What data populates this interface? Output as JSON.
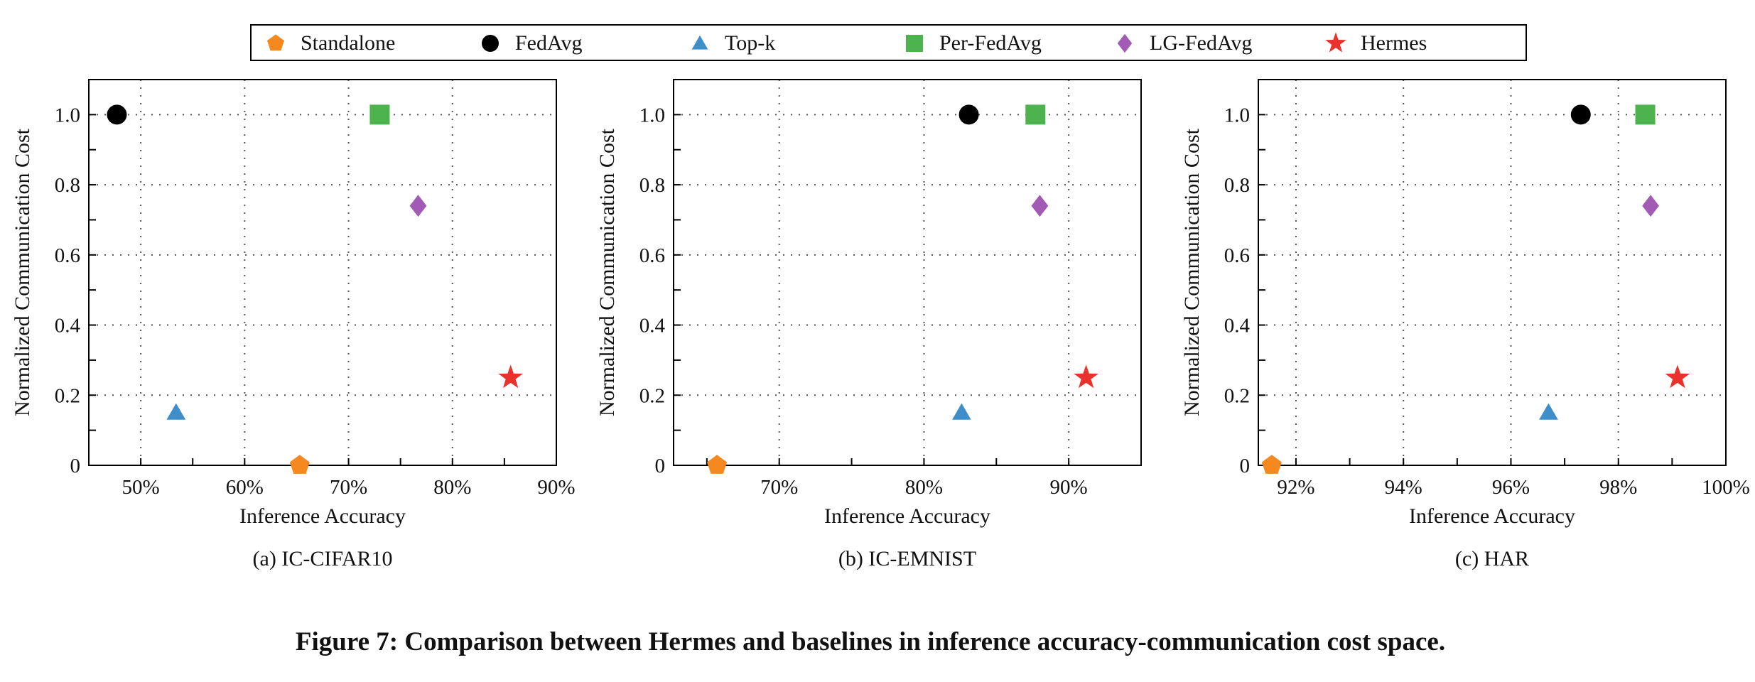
{
  "figure_caption": "Figure 7: Comparison between Hermes and baselines in inference accuracy-communication cost space.",
  "legend": {
    "items": [
      {
        "label": "Standalone",
        "marker": "pentagon",
        "color": "#f5891f"
      },
      {
        "label": "FedAvg",
        "marker": "circle",
        "color": "#000000"
      },
      {
        "label": "Top-k",
        "marker": "triangle",
        "color": "#3d8ec9"
      },
      {
        "label": "Per-FedAvg",
        "marker": "square",
        "color": "#4cb34f"
      },
      {
        "label": "LG-FedAvg",
        "marker": "diamond",
        "color": "#a25bb5"
      },
      {
        "label": "Hermes",
        "marker": "star",
        "color": "#e8322b"
      }
    ]
  },
  "chart_data": [
    {
      "type": "scatter",
      "subcaption": "(a) IC-CIFAR10",
      "xlabel": "Inference Accuracy",
      "ylabel": "Normalized Communication Cost",
      "xlim": [
        45,
        90
      ],
      "ylim": [
        0,
        1.1
      ],
      "xticks": [
        50,
        60,
        70,
        80,
        90
      ],
      "xtick_labels": [
        "50%",
        "60%",
        "70%",
        "80%",
        "90%"
      ],
      "yticks": [
        0,
        0.2,
        0.4,
        0.6,
        0.8,
        1.0
      ],
      "ytick_labels": [
        "0",
        "0.2",
        "0.4",
        "0.6",
        "0.8",
        "1.0"
      ],
      "grid": true,
      "series": [
        {
          "name": "Standalone",
          "x": 65.3,
          "y": 0.0
        },
        {
          "name": "FedAvg",
          "x": 47.7,
          "y": 1.0
        },
        {
          "name": "Top-k",
          "x": 53.4,
          "y": 0.15
        },
        {
          "name": "Per-FedAvg",
          "x": 73.0,
          "y": 1.0
        },
        {
          "name": "LG-FedAvg",
          "x": 76.7,
          "y": 0.74
        },
        {
          "name": "Hermes",
          "x": 85.6,
          "y": 0.25
        }
      ]
    },
    {
      "type": "scatter",
      "subcaption": "(b) IC-EMNIST",
      "xlabel": "Inference Accuracy",
      "ylabel": "Normalized Communication Cost",
      "xlim": [
        62.7,
        95
      ],
      "ylim": [
        0,
        1.1
      ],
      "xticks": [
        70,
        80,
        90
      ],
      "xtick_labels": [
        "70%",
        "80%",
        "90%"
      ],
      "yticks": [
        0,
        0.2,
        0.4,
        0.6,
        0.8,
        1.0
      ],
      "ytick_labels": [
        "0",
        "0.2",
        "0.4",
        "0.6",
        "0.8",
        "1.0"
      ],
      "grid": true,
      "series": [
        {
          "name": "Standalone",
          "x": 65.7,
          "y": 0.0
        },
        {
          "name": "FedAvg",
          "x": 83.1,
          "y": 1.0
        },
        {
          "name": "Top-k",
          "x": 82.6,
          "y": 0.15
        },
        {
          "name": "Per-FedAvg",
          "x": 87.7,
          "y": 1.0
        },
        {
          "name": "LG-FedAvg",
          "x": 88.0,
          "y": 0.74
        },
        {
          "name": "Hermes",
          "x": 91.2,
          "y": 0.25
        }
      ]
    },
    {
      "type": "scatter",
      "subcaption": "(c) HAR",
      "xlabel": "Inference Accuracy",
      "ylabel": "Normalized Communication Cost",
      "xlim": [
        91.3,
        100
      ],
      "ylim": [
        0,
        1.1
      ],
      "xticks": [
        92,
        94,
        96,
        98,
        100
      ],
      "xtick_labels": [
        "92%",
        "94%",
        "96%",
        "98%",
        "100%"
      ],
      "yticks": [
        0,
        0.2,
        0.4,
        0.6,
        0.8,
        1.0
      ],
      "ytick_labels": [
        "0",
        "0.2",
        "0.4",
        "0.6",
        "0.8",
        "1.0"
      ],
      "grid": true,
      "series": [
        {
          "name": "Standalone",
          "x": 91.55,
          "y": 0.0
        },
        {
          "name": "FedAvg",
          "x": 97.3,
          "y": 1.0
        },
        {
          "name": "Top-k",
          "x": 96.7,
          "y": 0.15
        },
        {
          "name": "Per-FedAvg",
          "x": 98.5,
          "y": 1.0
        },
        {
          "name": "LG-FedAvg",
          "x": 98.6,
          "y": 0.74
        },
        {
          "name": "Hermes",
          "x": 99.1,
          "y": 0.25
        }
      ]
    }
  ]
}
